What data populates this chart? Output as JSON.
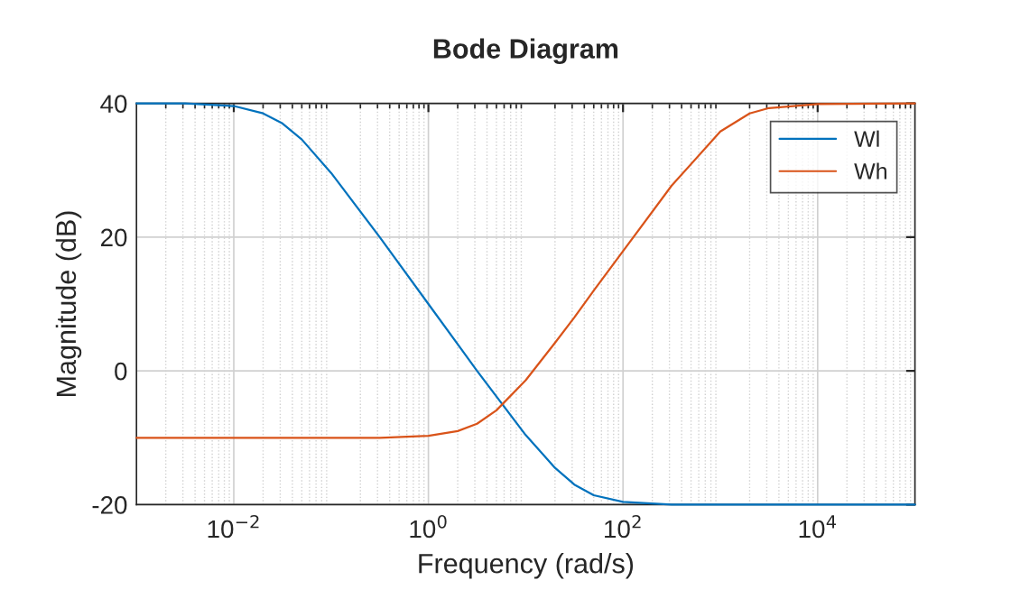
{
  "chart_data": {
    "type": "line",
    "title": "Bode Diagram",
    "xlabel": "Frequency (rad/s)",
    "ylabel": "Magnitude (dB)",
    "log": "x",
    "xlim": [
      0.001,
      100000
    ],
    "xticks": [
      {
        "value": 0.01,
        "label": "10$^{−2}$"
      },
      {
        "value": 1,
        "label": "10$^{0}$"
      },
      {
        "value": 100,
        "label": "10$^{2}$"
      },
      {
        "value": 10000,
        "label": "10$^{4}$"
      }
    ],
    "ylim": [
      -20,
      40
    ],
    "yticks": [
      -20,
      0,
      20,
      40
    ],
    "grid": true,
    "legend": "top right",
    "line_style": "solid",
    "marker": "none",
    "series": [
      {
        "name": "Wl",
        "color": "#0072bd",
        "x": [
          0.001,
          0.00316,
          0.01,
          0.02,
          0.0316,
          0.05,
          0.1,
          0.316,
          1,
          3.16,
          10,
          20,
          31.6,
          50,
          100,
          316,
          1000,
          10000,
          100000
        ],
        "values": [
          40.0,
          40.0,
          39.6,
          38.5,
          37.0,
          34.6,
          29.6,
          20.0,
          10.0,
          0.0,
          -9.6,
          -14.5,
          -17.0,
          -18.6,
          -19.6,
          -20.0,
          -20.0,
          -20.0,
          -20.0
        ]
      },
      {
        "name": "Wh",
        "color": "#d95319",
        "x": [
          0.001,
          0.01,
          0.1,
          0.316,
          1,
          2,
          3.16,
          5,
          10,
          20,
          31.6,
          50,
          100,
          316,
          1000,
          2000,
          3162,
          10000,
          100000
        ],
        "values": [
          -10.0,
          -10.0,
          -10.0,
          -10.0,
          -9.7,
          -9.0,
          -7.9,
          -5.9,
          -1.4,
          4.2,
          8.0,
          12.0,
          17.9,
          27.7,
          35.8,
          38.5,
          39.3,
          39.9,
          40.0
        ]
      }
    ]
  }
}
